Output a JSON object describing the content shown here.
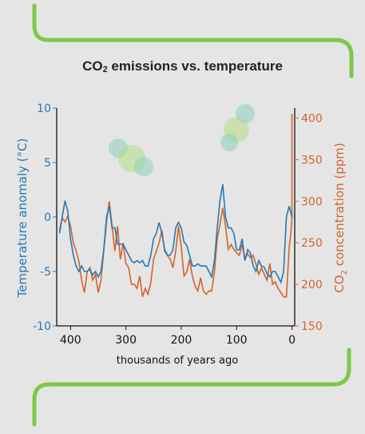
{
  "chart_data": {
    "type": "line",
    "title_main": "CO",
    "title_sub": "2",
    "title_rest": " emissions vs. temperature",
    "xlabel": "thousands of years ago",
    "ylabel_left": "Temperature anomaly (°C)",
    "ylabel_right_a": "CO",
    "ylabel_right_sub": "2",
    "ylabel_right_b": " concentration (ppm)",
    "xlim": [
      425,
      -5
    ],
    "ylim_left": [
      -10,
      10
    ],
    "ylim_right": [
      150,
      412
    ],
    "x_ticks": [
      400,
      300,
      200,
      100,
      0
    ],
    "y_left_ticks": [
      10,
      5,
      0,
      -5,
      -10
    ],
    "y_right_ticks": [
      400,
      350,
      300,
      250,
      200,
      150
    ],
    "grid": false,
    "colors": {
      "temperature": "#2878b4",
      "co2": "#d2642a",
      "accent_green": "#7cc84a",
      "bubble_green": "#b4dc82",
      "bubble_teal": "#8cd2be"
    },
    "series": [
      {
        "axis": "left",
        "x": [
          420,
          415,
          410,
          405,
          400,
          395,
          390,
          385,
          380,
          375,
          370,
          365,
          360,
          355,
          350,
          345,
          340,
          335,
          330,
          325,
          320,
          315,
          310,
          305,
          300,
          295,
          290,
          285,
          280,
          275,
          270,
          265,
          260,
          255,
          250,
          245,
          240,
          235,
          230,
          225,
          220,
          215,
          210,
          205,
          200,
          195,
          190,
          185,
          180,
          175,
          170,
          165,
          160,
          155,
          150,
          145,
          140,
          135,
          130,
          125,
          120,
          115,
          110,
          105,
          100,
          95,
          90,
          85,
          80,
          75,
          70,
          65,
          60,
          55,
          50,
          45,
          40,
          35,
          30,
          25,
          20,
          15,
          10,
          5,
          0
        ],
        "values": [
          -1.5,
          0,
          1.5,
          0.5,
          -2,
          -3.5,
          -4.5,
          -5,
          -4.5,
          -5,
          -5,
          -4.8,
          -5.3,
          -5,
          -5.5,
          -5,
          -3,
          0,
          1,
          -1,
          -1,
          -2.5,
          -2.5,
          -2.5,
          -3,
          -3.5,
          -4,
          -4.2,
          -4,
          -4.2,
          -4,
          -4.5,
          -4.5,
          -3.5,
          -2,
          -1.5,
          -0.5,
          -1.5,
          -3,
          -3.5,
          -3.5,
          -3,
          -1,
          -0.5,
          -1,
          -2.3,
          -2.6,
          -3.5,
          -4.5,
          -4.5,
          -4.3,
          -4.5,
          -4.5,
          -4.5,
          -5,
          -5.5,
          -4,
          -1,
          1.5,
          3,
          0,
          -1,
          -1,
          -1.5,
          -3,
          -3,
          -2,
          -4,
          -3,
          -3.3,
          -4.5,
          -5,
          -4,
          -4.5,
          -4.6,
          -5.2,
          -5.5,
          -5,
          -5,
          -5.5,
          -6,
          -5,
          0,
          1,
          0
        ]
      },
      {
        "axis": "right",
        "x": [
          420,
          415,
          410,
          405,
          400,
          395,
          390,
          385,
          380,
          375,
          370,
          365,
          360,
          355,
          350,
          345,
          340,
          335,
          330,
          325,
          320,
          315,
          310,
          305,
          300,
          295,
          290,
          285,
          280,
          275,
          270,
          265,
          260,
          255,
          250,
          245,
          240,
          235,
          230,
          225,
          220,
          215,
          210,
          205,
          200,
          195,
          190,
          185,
          180,
          175,
          170,
          165,
          160,
          155,
          150,
          145,
          140,
          135,
          130,
          125,
          120,
          115,
          110,
          105,
          100,
          95,
          90,
          85,
          80,
          75,
          70,
          65,
          60,
          55,
          50,
          45,
          40,
          35,
          30,
          25,
          20,
          15,
          10,
          5,
          2,
          1,
          0,
          0
        ],
        "values": [
          265,
          280,
          275,
          282,
          270,
          250,
          240,
          228,
          205,
          190,
          215,
          220,
          205,
          212,
          190,
          205,
          240,
          275,
          300,
          270,
          240,
          270,
          230,
          250,
          225,
          220,
          200,
          200,
          195,
          210,
          185,
          195,
          188,
          202,
          230,
          240,
          250,
          265,
          240,
          235,
          230,
          220,
          240,
          270,
          245,
          210,
          215,
          230,
          210,
          198,
          192,
          208,
          192,
          188,
          192,
          192,
          215,
          255,
          272,
          292,
          270,
          242,
          248,
          242,
          238,
          235,
          248,
          230,
          237,
          232,
          235,
          224,
          212,
          220,
          212,
          205,
          225,
          200,
          203,
          195,
          190,
          185,
          185,
          245,
          260,
          270,
          280,
          405
        ]
      }
    ]
  }
}
